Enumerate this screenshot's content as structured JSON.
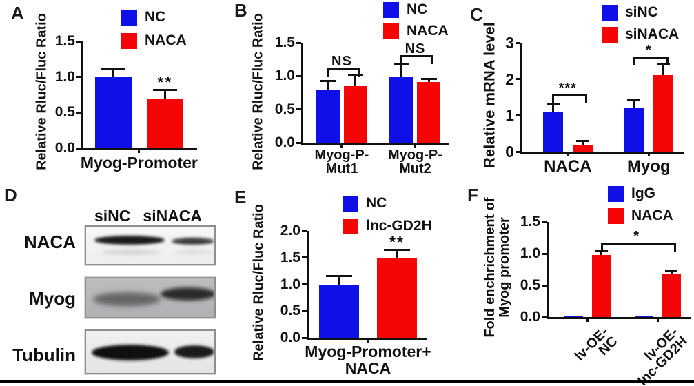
{
  "panels": {
    "A": {
      "letter": "A",
      "ylabel": "Relative Rluc/Fluc Ratio"
    },
    "B": {
      "letter": "B",
      "ylabel": "Relative Rluc/Fluc Ratio"
    },
    "C": {
      "letter": "C",
      "ylabel": "Relative mRNA level"
    },
    "D": {
      "letter": "D",
      "col_headers": [
        "siNC",
        "siNACA"
      ],
      "row_labels": [
        "NACA",
        "Myog",
        "Tubulin"
      ]
    },
    "E": {
      "letter": "E",
      "ylabel": "Relative Rluc/Fluc Ratio"
    },
    "F": {
      "letter": "F",
      "ylabel": "Fold enchrichment of\nMyog promoter"
    }
  },
  "colors": {
    "blue": "#0f0fe8",
    "red": "#f50505",
    "axis": "#111111"
  },
  "chart_data": [
    {
      "panel": "A",
      "type": "bar",
      "title": "",
      "xlabel": "Myog-Promoter",
      "ylabel": "Relative Rluc/Fluc Ratio",
      "categories": [
        "Myog-Promoter"
      ],
      "ylim": [
        0,
        1.5
      ],
      "yticks": [
        "0.0",
        "0.5",
        "1.0",
        "1.5"
      ],
      "legend_position": "top",
      "series": [
        {
          "name": "NC",
          "color": "#0f0fe8",
          "values": [
            1.0
          ],
          "errors": [
            0.1
          ]
        },
        {
          "name": "NACA",
          "color": "#f50505",
          "values": [
            0.7
          ],
          "errors": [
            0.1
          ]
        }
      ],
      "annotations": [
        {
          "type": "star",
          "text": "**",
          "group": 0,
          "series": 1
        }
      ]
    },
    {
      "panel": "B",
      "type": "bar",
      "title": "",
      "xlabel": "",
      "ylabel": "Relative Rluc/Fluc Ratio",
      "categories": [
        "Myog-P-\nMut1",
        "Myog-P-\nMut2"
      ],
      "ylim": [
        0,
        1.5
      ],
      "yticks": [
        "0.0",
        "0.5",
        "1.0",
        "1.5"
      ],
      "legend_position": "top",
      "series": [
        {
          "name": "NC",
          "color": "#0f0fe8",
          "values": [
            0.79,
            0.99
          ],
          "errors": [
            0.12,
            0.17
          ]
        },
        {
          "name": "NACA",
          "color": "#f50505",
          "values": [
            0.85,
            0.91
          ],
          "errors": [
            0.15,
            0.03
          ]
        }
      ],
      "annotations": [
        {
          "type": "bracket",
          "text": "NS",
          "group": 0,
          "y": 1.1
        },
        {
          "type": "bracket",
          "text": "NS",
          "group": 1,
          "y": 1.28
        }
      ]
    },
    {
      "panel": "C",
      "type": "bar",
      "title": "",
      "xlabel": "",
      "ylabel": "Relative mRNA level",
      "categories": [
        "NACA",
        "Myog"
      ],
      "ylim": [
        0,
        3
      ],
      "yticks": [
        "0",
        "1",
        "2",
        "3"
      ],
      "legend_position": "top",
      "series": [
        {
          "name": "siNC",
          "color": "#0f0fe8",
          "values": [
            1.1,
            1.2
          ],
          "errors": [
            0.2,
            0.2
          ]
        },
        {
          "name": "siNACA",
          "color": "#f50505",
          "values": [
            0.17,
            2.1
          ],
          "errors": [
            0.1,
            0.3
          ]
        }
      ],
      "annotations": [
        {
          "type": "bracket",
          "text": "***",
          "group": 0,
          "y": 1.52
        },
        {
          "type": "bracket",
          "text": "*",
          "group": 1,
          "y": 2.56
        }
      ]
    },
    {
      "panel": "E",
      "type": "bar",
      "title": "",
      "xlabel": "Myog-Promoter+ NACA",
      "ylabel": "Relative Rluc/Fluc Ratio",
      "categories": [
        "Myog-Promoter+\nNACA"
      ],
      "ylim": [
        0,
        2
      ],
      "yticks": [
        "0.0",
        "0.5",
        "1.0",
        "1.5",
        "2.0"
      ],
      "legend_position": "top",
      "series": [
        {
          "name": "NC",
          "color": "#0f0fe8",
          "values": [
            1.0
          ],
          "errors": [
            0.13
          ]
        },
        {
          "name": "lnc-GD2H",
          "color": "#f50505",
          "values": [
            1.48
          ],
          "errors": [
            0.15
          ]
        }
      ],
      "annotations": [
        {
          "type": "star",
          "text": "**",
          "group": 0,
          "series": 1
        }
      ]
    },
    {
      "panel": "F",
      "type": "bar",
      "title": "",
      "xlabel": "",
      "ylabel": "Fold enchrichment of Myog promoter",
      "categories": [
        "lv-OE-NC",
        "lv-OE-\nlnc-GD2H"
      ],
      "ylim": [
        0,
        1.5
      ],
      "yticks": [
        "0.0",
        "0.5",
        "1.0",
        "1.5"
      ],
      "legend_position": "top",
      "series": [
        {
          "name": "IgG",
          "color": "#0f0fe8",
          "values": [
            0.02,
            0.02
          ],
          "errors": [
            0,
            0
          ]
        },
        {
          "name": "NACA",
          "color": "#f50505",
          "values": [
            0.98,
            0.67
          ],
          "errors": [
            0.04,
            0.04
          ]
        }
      ],
      "annotations": [
        {
          "type": "span_bracket",
          "text": "*",
          "y": 1.14,
          "from": {
            "group": 0,
            "series": 1
          },
          "to": {
            "group": 1,
            "series": 1
          }
        }
      ]
    }
  ]
}
